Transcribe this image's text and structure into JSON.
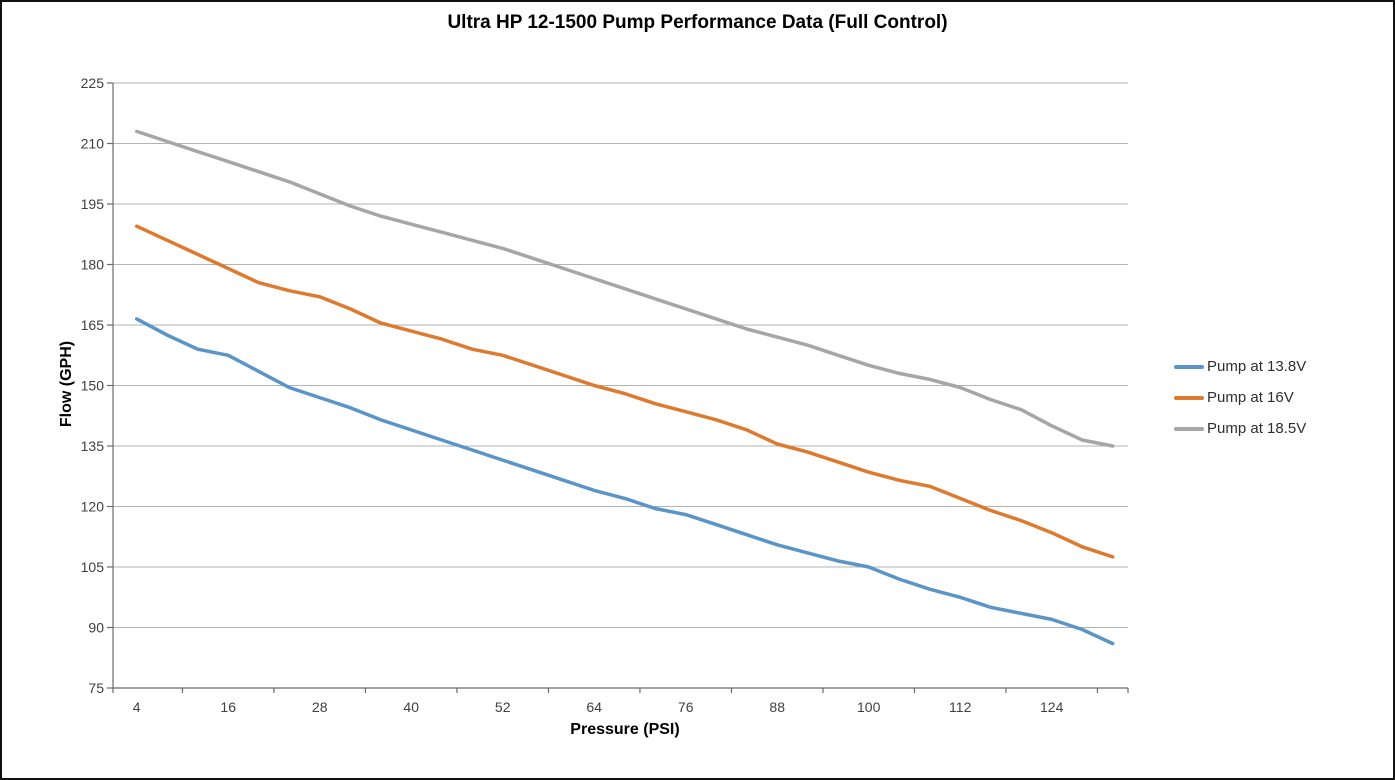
{
  "title": "Ultra HP 12-1500 Pump Performance Data (Full Control)",
  "axes": {
    "x_label": "Pressure (PSI)",
    "y_label": "Flow (GPH)"
  },
  "colors": {
    "series_blue": "#5b94c6",
    "series_orange": "#dd7a30",
    "series_gray": "#a6a6a6",
    "gridline": "#b3b3b3",
    "axis_line": "#6b6b6b",
    "tick_label": "#404040"
  },
  "chart_data": {
    "type": "line",
    "title": "Ultra HP 12-1500 Pump Performance Data (Full Control)",
    "xlabel": "Pressure (PSI)",
    "ylabel": "Flow (GPH)",
    "xlim": [
      4,
      132
    ],
    "ylim": [
      75,
      225
    ],
    "grid": "horizontal",
    "legend_position": "right",
    "x_tick_labels": [
      4,
      16,
      28,
      40,
      52,
      64,
      76,
      88,
      100,
      112,
      124
    ],
    "y_ticks": [
      75,
      90,
      105,
      120,
      135,
      150,
      165,
      180,
      195,
      210,
      225
    ],
    "x": [
      4,
      8,
      12,
      16,
      20,
      24,
      28,
      32,
      36,
      40,
      44,
      48,
      52,
      56,
      60,
      64,
      68,
      72,
      76,
      80,
      84,
      88,
      92,
      96,
      100,
      104,
      108,
      112,
      116,
      120,
      124,
      128,
      132
    ],
    "series": [
      {
        "name": "Pump at 13.8V",
        "color": "#5b94c6",
        "values": [
          166.5,
          162.5,
          159,
          157.5,
          153.5,
          149.5,
          147,
          144.5,
          141.5,
          139,
          136.5,
          134,
          131.5,
          129,
          126.5,
          124,
          122,
          119.5,
          118,
          115.5,
          113,
          110.5,
          108.5,
          106.5,
          105,
          102,
          99.5,
          97.5,
          95,
          93.5,
          92,
          89.5,
          86
        ]
      },
      {
        "name": "Pump at 16V",
        "color": "#dd7a30",
        "values": [
          189.5,
          186,
          182.5,
          179,
          175.5,
          173.5,
          172,
          169,
          165.5,
          163.5,
          161.5,
          159,
          157.5,
          155,
          152.5,
          150,
          148,
          145.5,
          143.5,
          141.5,
          139,
          135.5,
          133.5,
          131,
          128.5,
          126.5,
          125,
          122,
          119,
          116.5,
          113.5,
          110,
          107.5
        ]
      },
      {
        "name": "Pump at 18.5V",
        "color": "#a6a6a6",
        "values": [
          213,
          210.5,
          208,
          205.5,
          203,
          200.5,
          197.5,
          194.5,
          192,
          190,
          188,
          186,
          184,
          181.5,
          179,
          176.5,
          174,
          171.5,
          169,
          166.5,
          164,
          162,
          160,
          157.5,
          155,
          153,
          151.5,
          149.5,
          146.5,
          144,
          140,
          136.5,
          135
        ]
      }
    ]
  }
}
